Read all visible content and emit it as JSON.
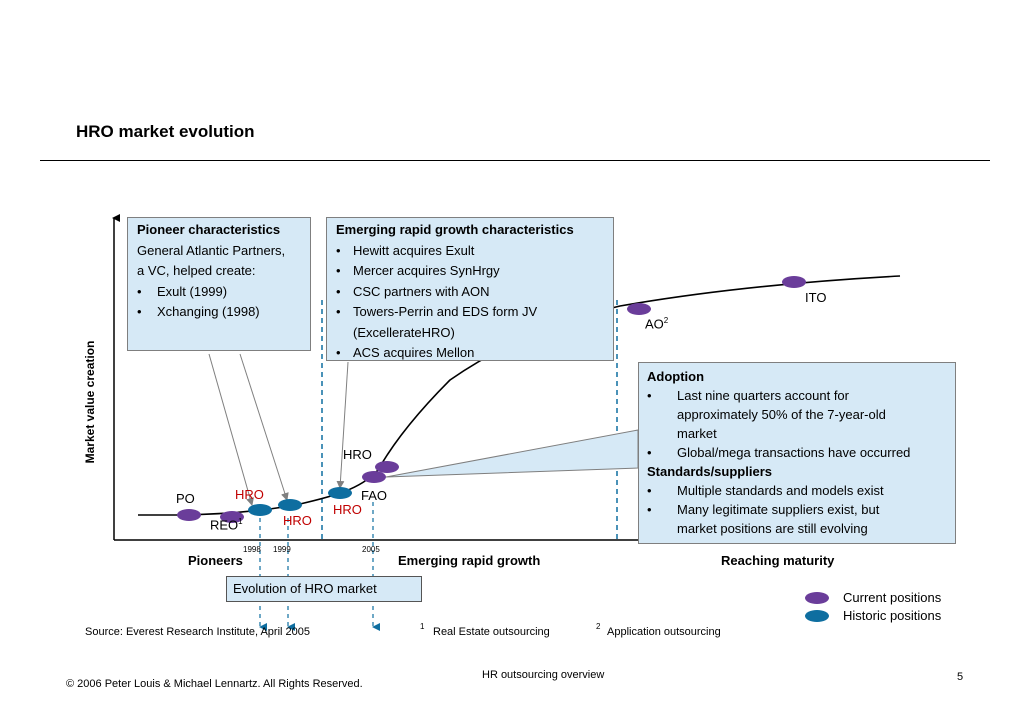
{
  "title": "HRO market evolution",
  "y_axis_label": "Market value creation",
  "pioneer_box": {
    "heading": "Pioneer characteristics",
    "intro": [
      "General Atlantic Partners,",
      "a VC, helped create:"
    ],
    "bullets": [
      "Exult (1999)",
      "Xchanging (1998)"
    ]
  },
  "growth_box": {
    "heading": "Emerging rapid growth characteristics",
    "bullets": [
      "Hewitt acquires Exult",
      "Mercer acquires SynHrgy",
      "CSC partners with AON",
      "Towers-Perrin and EDS form JV",
      "(ExcellerateHRO)",
      "ACS acquires Mellon"
    ]
  },
  "adoption_box": {
    "heading1": "Adoption",
    "bullets1": [
      "Last nine quarters account for",
      "approximately 50% of the 7-year-old",
      "market",
      "Global/mega transactions have occurred"
    ],
    "heading2": "Standards/suppliers",
    "bullets2": [
      "Multiple standards and models exist",
      "Many legitimate suppliers exist, but",
      "market positions are still evolving"
    ]
  },
  "curve_labels": {
    "po": "PO",
    "reo": "REO",
    "reo_sup": "1",
    "hro_1998": "HRO",
    "hro_1999": "HRO",
    "hro_2005": "HRO",
    "fao": "FAO",
    "hro_current": "HRO",
    "ao": "AO",
    "ao_sup": "2",
    "ito": "ITO"
  },
  "years": [
    "1998",
    "1999",
    "2005"
  ],
  "phases": [
    "Pioneers",
    "Emerging rapid growth",
    "Reaching maturity"
  ],
  "evolution_label": "Evolution of HRO market",
  "legend": {
    "current": "Current positions",
    "historic": "Historic positions",
    "current_color": "#6a3d9a",
    "historic_color": "#0e6ea0"
  },
  "source": "Source: Everest Research Institute, April 2005",
  "footnotes": {
    "f1_num": "1",
    "f1_text": "Real Estate outsourcing",
    "f2_num": "2",
    "f2_text": "Application outsourcing"
  },
  "footer": {
    "center": "HR outsourcing overview",
    "copyright": "© 2006 Peter Louis & Michael Lennartz. All Rights Reserved.",
    "page": "5"
  }
}
